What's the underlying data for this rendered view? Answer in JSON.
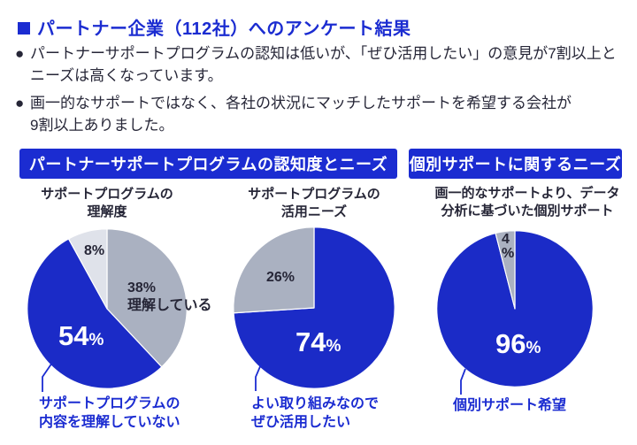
{
  "header": {
    "marker": "■",
    "title": "パートナー企業（112社）へのアンケート結果"
  },
  "intro": {
    "bullets": [
      {
        "marker": "●",
        "text": "パートナーサポートプログラムの認知は低いが、「ぜひ活用したい」の意見が7割以上と\nニーズは高くなっています。"
      },
      {
        "marker": "●",
        "text": "画一的なサポートではなく、各社の状況にマッチしたサポートを希望する会社が\n9割以上ありました。"
      }
    ]
  },
  "sections": [
    {
      "title": "パートナーサポートプログラムの認知度とニーズ"
    },
    {
      "title": "個別サポートに関するニーズ"
    }
  ],
  "colors": {
    "accent": "#1B2CD1",
    "pie_blue": "#1B2BC7",
    "pie_gray": "#AAB1C1",
    "pie_light_gray": "#DFE2EA",
    "text_dark": "#262637",
    "label_on_blue": "#FFFFFF"
  },
  "chart_data": [
    {
      "type": "pie",
      "title": "サポートプログラムの\n理解度",
      "unit": "%",
      "legend_position": "none",
      "slices": [
        {
          "label": "理解している",
          "value": 38,
          "color": "#AAB1C1"
        },
        {
          "label": "サポートプログラムの内容を理解していない",
          "value": 54,
          "color": "#1B2BC7"
        },
        {
          "label": "",
          "value": 8,
          "color": "#DFE2EA"
        }
      ],
      "callout": "サポートプログラムの\n内容を理解していない"
    },
    {
      "type": "pie",
      "title": "サポートプログラムの\n活用ニーズ",
      "unit": "%",
      "legend_position": "none",
      "slices": [
        {
          "label": "よい取り組みなのでぜひ活用したい",
          "value": 74,
          "color": "#1B2BC7"
        },
        {
          "label": "",
          "value": 26,
          "color": "#AAB1C1"
        }
      ],
      "callout": "よい取り組みなので\nぜひ活用したい"
    },
    {
      "type": "pie",
      "title": "画一的なサポートより、データ\n分析に基づいた個別サポート",
      "unit": "%",
      "legend_position": "none",
      "slices": [
        {
          "label": "個別サポート希望",
          "value": 96,
          "color": "#1B2BC7"
        },
        {
          "label": "",
          "value": 4,
          "color": "#AAB1C1"
        }
      ],
      "callout": "個別サポート希望"
    }
  ]
}
